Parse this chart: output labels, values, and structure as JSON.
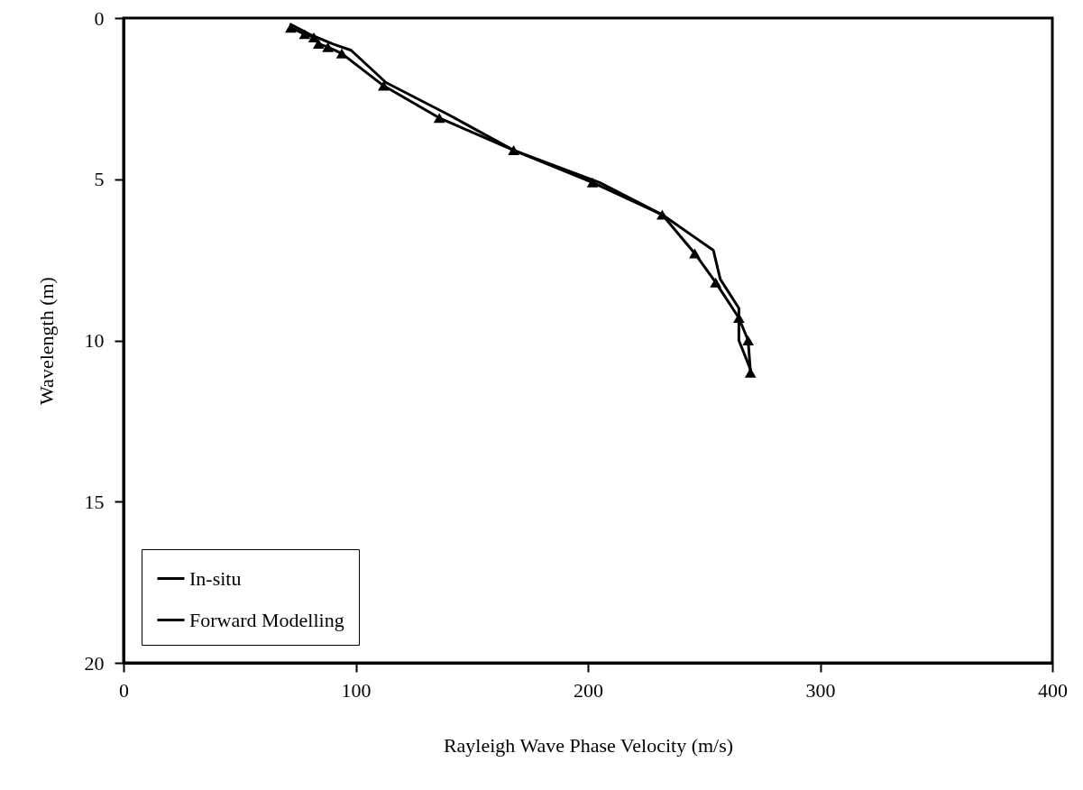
{
  "chart_data": {
    "type": "line",
    "xlabel": "Rayleigh Wave Phase Velocity (m/s)",
    "ylabel": "Wavelength (m)",
    "xlim": [
      0,
      400
    ],
    "xticks": [
      0,
      100,
      200,
      300,
      400
    ],
    "ylim": [
      20,
      0
    ],
    "yticks": [
      0,
      5,
      10,
      15,
      20
    ],
    "grid": false,
    "legend": "bottom left",
    "line_style": "solid",
    "series": [
      {
        "name": "In-situ",
        "color": "#000000",
        "marker": "triangle",
        "x": [
          72,
          78,
          82,
          84,
          88,
          94,
          112,
          136,
          168,
          202,
          232,
          246,
          255,
          265,
          269,
          270
        ],
        "values": [
          0.3,
          0.5,
          0.6,
          0.8,
          0.9,
          1.1,
          2.1,
          3.1,
          4.1,
          5.1,
          6.1,
          7.3,
          8.2,
          9.3,
          10.0,
          11.0
        ]
      },
      {
        "name": "Forward Modelling",
        "color": "#000000",
        "marker": "none",
        "x": [
          72,
          80,
          90,
          98,
          113,
          140,
          168,
          205,
          232,
          254,
          257,
          265,
          265,
          270
        ],
        "values": [
          0.2,
          0.5,
          0.8,
          1.0,
          2.0,
          3.0,
          4.1,
          5.1,
          6.1,
          7.2,
          8.1,
          9.0,
          10.0,
          10.9
        ]
      }
    ]
  }
}
